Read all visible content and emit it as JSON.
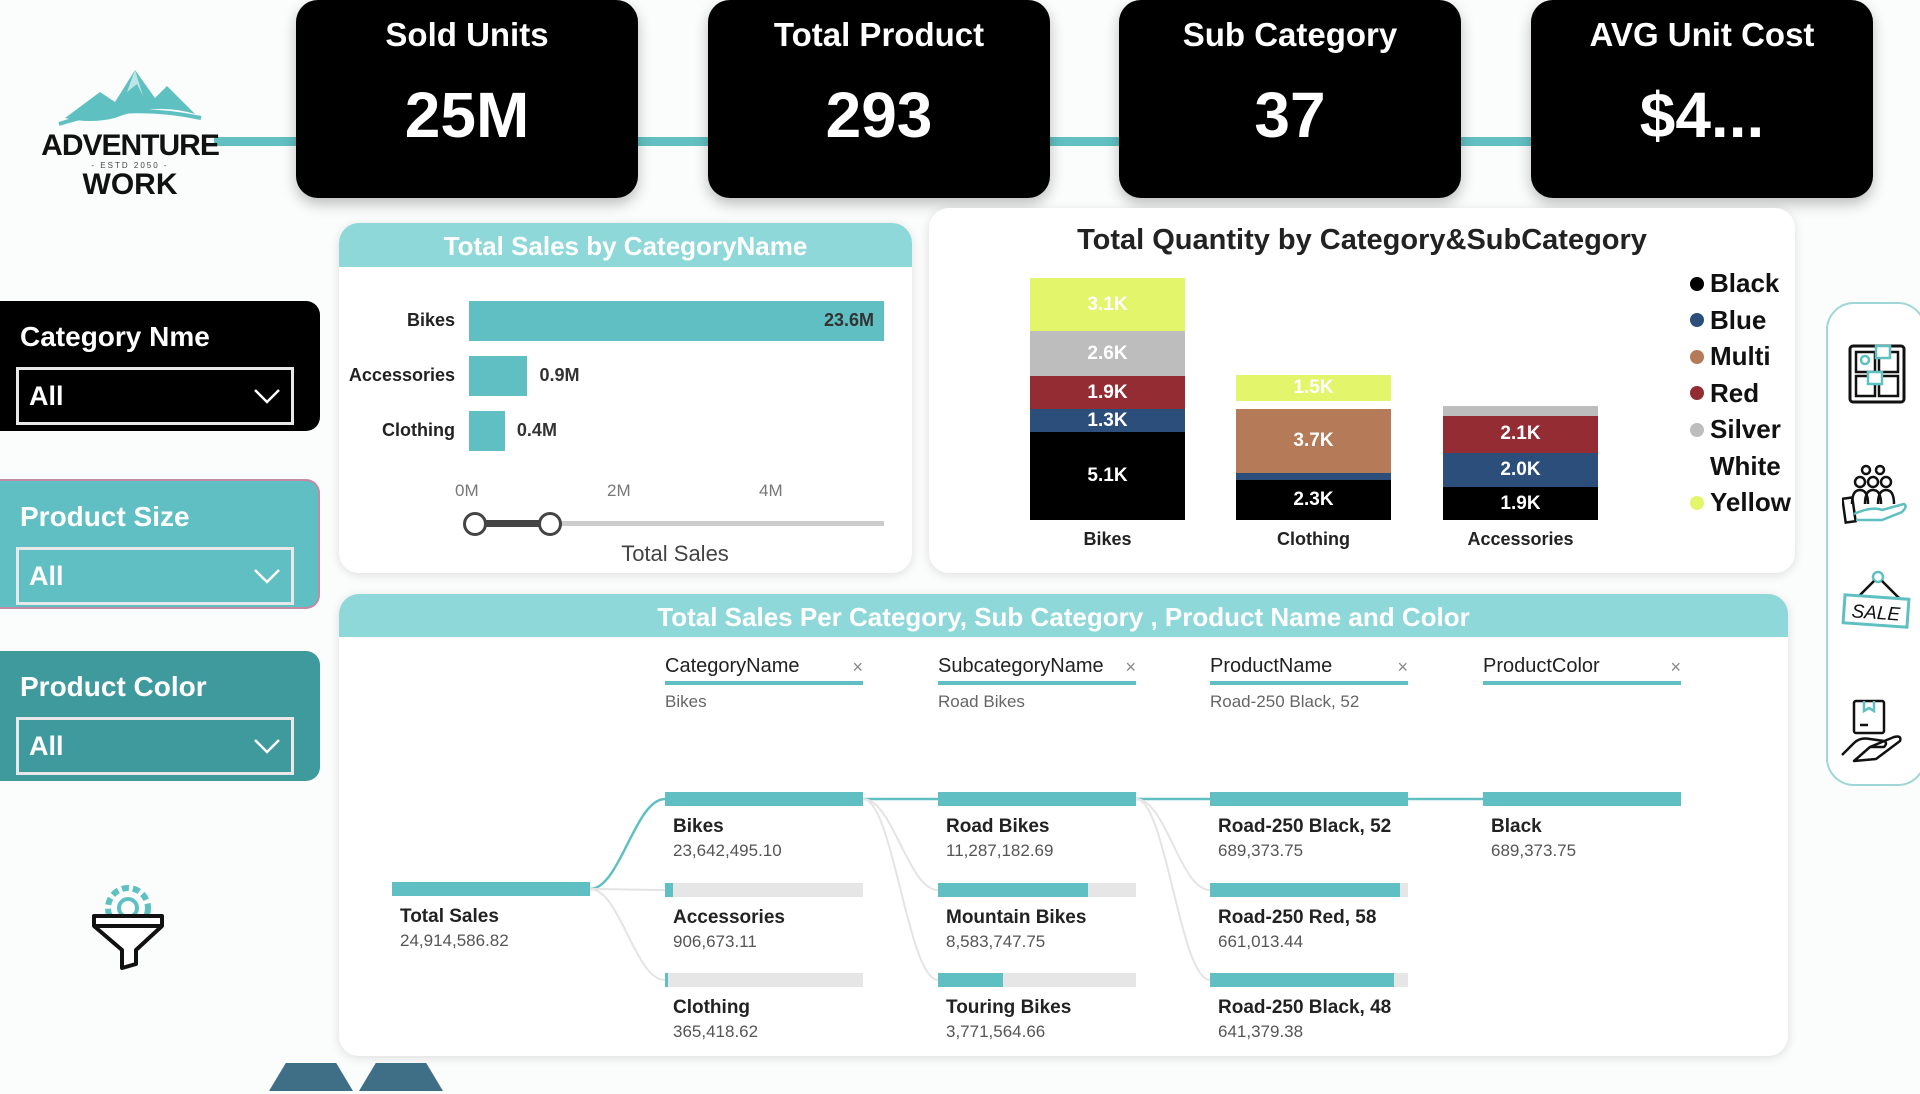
{
  "logo": {
    "line1": "ADVENTURE",
    "estd": "- ESTD 2050 -",
    "line2": "WORK"
  },
  "kpis": [
    {
      "title": "Sold Units",
      "value": "25M"
    },
    {
      "title": "Total Product",
      "value": "293"
    },
    {
      "title": "Sub Category",
      "value": "37"
    },
    {
      "title": "AVG Unit Cost",
      "value": "$4..."
    }
  ],
  "slicers": [
    {
      "label": "Category Nme",
      "value": "All",
      "bg": "#000000"
    },
    {
      "label": "Product Size",
      "value": "All",
      "bg": "#5fbfc2"
    },
    {
      "label": "Product Color",
      "value": "All",
      "bg": "#3e9a9c"
    }
  ],
  "chart_data": [
    {
      "type": "bar",
      "orientation": "horizontal",
      "title": "Total Sales by CategoryName",
      "categories": [
        "Bikes",
        "Accessories",
        "Clothing"
      ],
      "values": [
        23.6,
        0.9,
        0.4
      ],
      "data_labels": [
        "23.6M",
        "0.9M",
        "0.4M"
      ],
      "xlabel": "Total Sales",
      "x_ticks": [
        "0M",
        "2M",
        "4M"
      ],
      "range_slider": {
        "min": 0,
        "max": 1
      },
      "color": "#5fbfc2"
    },
    {
      "type": "bar",
      "stacked": true,
      "title": "Total Quantity by Category&SubCategory",
      "categories": [
        "Bikes",
        "Clothing",
        "Accessories"
      ],
      "unit": "K",
      "legend_position": "right",
      "series": [
        {
          "name": "Black",
          "color": "#000000",
          "values": [
            5.1,
            2.3,
            1.9
          ]
        },
        {
          "name": "Blue",
          "color": "#2b4e7b",
          "values": [
            1.3,
            0.4,
            2.0
          ]
        },
        {
          "name": "Multi",
          "color": "#b57a57",
          "values": [
            0,
            3.7,
            0
          ]
        },
        {
          "name": "Red",
          "color": "#942c33",
          "values": [
            1.9,
            0,
            2.1
          ]
        },
        {
          "name": "Silver",
          "color": "#bdbdbd",
          "values": [
            2.6,
            0,
            0.6
          ]
        },
        {
          "name": "White",
          "color": "#ffffff",
          "values": [
            0,
            0.5,
            0
          ]
        },
        {
          "name": "Yellow",
          "color": "#e3f56b",
          "values": [
            3.1,
            1.5,
            0
          ]
        }
      ]
    }
  ],
  "tree": {
    "title": "Total Sales Per Category, Sub Category , Product Name and Color",
    "root": {
      "name": "Total Sales",
      "value": "24,914,586.82"
    },
    "columns": [
      {
        "header": "CategoryName",
        "selected": "Bikes",
        "nodes": [
          {
            "name": "Bikes",
            "value": "23,642,495.10",
            "fill": 1.0
          },
          {
            "name": "Accessories",
            "value": "906,673.11",
            "fill": 0.04
          },
          {
            "name": "Clothing",
            "value": "365,418.62",
            "fill": 0.015
          }
        ]
      },
      {
        "header": "SubcategoryName",
        "selected": "Road Bikes",
        "nodes": [
          {
            "name": "Road Bikes",
            "value": "11,287,182.69",
            "fill": 1.0
          },
          {
            "name": "Mountain Bikes",
            "value": "8,583,747.75",
            "fill": 0.76
          },
          {
            "name": "Touring Bikes",
            "value": "3,771,564.66",
            "fill": 0.33
          }
        ]
      },
      {
        "header": "ProductName",
        "selected": "Road-250 Black, 52",
        "nodes": [
          {
            "name": "Road-250 Black, 52",
            "value": "689,373.75",
            "fill": 1.0
          },
          {
            "name": "Road-250 Red, 58",
            "value": "661,013.44",
            "fill": 0.96
          },
          {
            "name": "Road-250 Black, 48",
            "value": "641,379.38",
            "fill": 0.93
          }
        ]
      },
      {
        "header": "ProductColor",
        "selected": "",
        "nodes": [
          {
            "name": "Black",
            "value": "689,373.75",
            "fill": 1.0
          }
        ]
      }
    ],
    "close_symbol": "×"
  },
  "side_icons": [
    "customer-segments-icon",
    "customers-hand-icon",
    "sale-sign-icon",
    "product-delivery-icon"
  ],
  "accent": "#5fbfc2"
}
